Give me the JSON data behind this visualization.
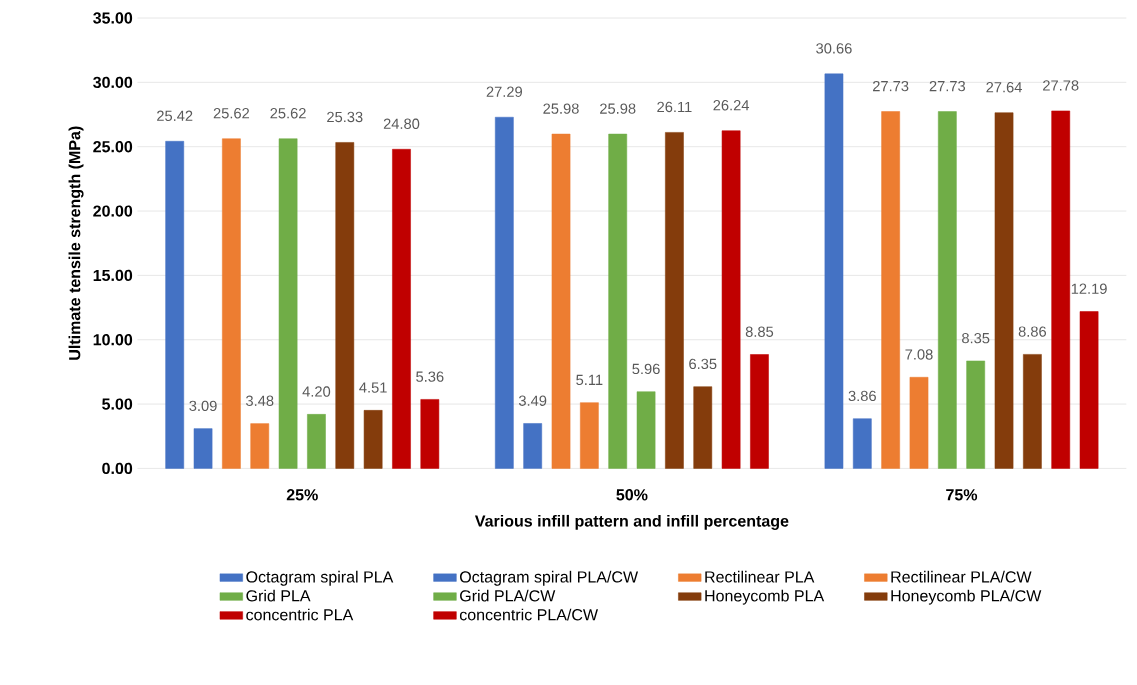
{
  "chart_data": {
    "type": "bar",
    "xlabel": "Various infill pattern and infill percentage",
    "ylabel": "Ultimate tensile strength (MPa)",
    "categories": [
      "25%",
      "50%",
      "75%"
    ],
    "ylim": [
      0,
      35
    ],
    "yticks": [
      {
        "value": 0,
        "label": "0.00"
      },
      {
        "value": 5,
        "label": "5.00"
      },
      {
        "value": 10,
        "label": "10.00"
      },
      {
        "value": 15,
        "label": "15.00"
      },
      {
        "value": 20,
        "label": "20.00"
      },
      {
        "value": 25,
        "label": "25.00"
      },
      {
        "value": 30,
        "label": "30.00"
      },
      {
        "value": 35,
        "label": "35.00"
      }
    ],
    "grid": "y",
    "legend": "bottom",
    "series": [
      {
        "name": "Octagram spiral PLA",
        "color": "#4472c4",
        "values": [
          25.42,
          27.29,
          30.66
        ],
        "value_labels": [
          "25.42",
          "27.29",
          "30.66"
        ]
      },
      {
        "name": "Octagram spiral PLA/CW",
        "color": "#4472c4",
        "values": [
          3.09,
          3.49,
          3.86
        ],
        "value_labels": [
          "3.09",
          "3.49",
          "3.86"
        ]
      },
      {
        "name": "Rectilinear PLA",
        "color": "#ed7d31",
        "values": [
          25.62,
          25.98,
          27.73
        ],
        "value_labels": [
          "25.62",
          "25.98",
          "27.73"
        ]
      },
      {
        "name": "Rectilinear PLA/CW",
        "color": "#ed7d31",
        "values": [
          3.48,
          5.11,
          7.08
        ],
        "value_labels": [
          "3.48",
          "5.11",
          "7.08"
        ]
      },
      {
        "name": "Grid PLA",
        "color": "#70ad47",
        "values": [
          25.62,
          25.98,
          27.73
        ],
        "value_labels": [
          "25.62",
          "25.98",
          "27.73"
        ]
      },
      {
        "name": "Grid PLA/CW",
        "color": "#70ad47",
        "values": [
          4.2,
          5.96,
          8.35
        ],
        "value_labels": [
          "4.20",
          "5.96",
          "8.35"
        ]
      },
      {
        "name": "Honeycomb PLA",
        "color": "#843c0c",
        "values": [
          25.33,
          26.11,
          27.64
        ],
        "value_labels": [
          "25.33",
          "26.11",
          "27.64"
        ]
      },
      {
        "name": "Honeycomb PLA/CW",
        "color": "#843c0c",
        "values": [
          4.51,
          6.35,
          8.86
        ],
        "value_labels": [
          "4.51",
          "6.35",
          "8.86"
        ]
      },
      {
        "name": "concentric PLA",
        "color": "#c00000",
        "values": [
          24.8,
          26.24,
          27.78
        ],
        "value_labels": [
          "24.80",
          "26.24",
          "27.78"
        ]
      },
      {
        "name": "concentric PLA/CW",
        "color": "#c00000",
        "values": [
          5.36,
          8.85,
          12.19
        ],
        "value_labels": [
          "5.36",
          "8.85",
          "12.19"
        ]
      }
    ]
  }
}
